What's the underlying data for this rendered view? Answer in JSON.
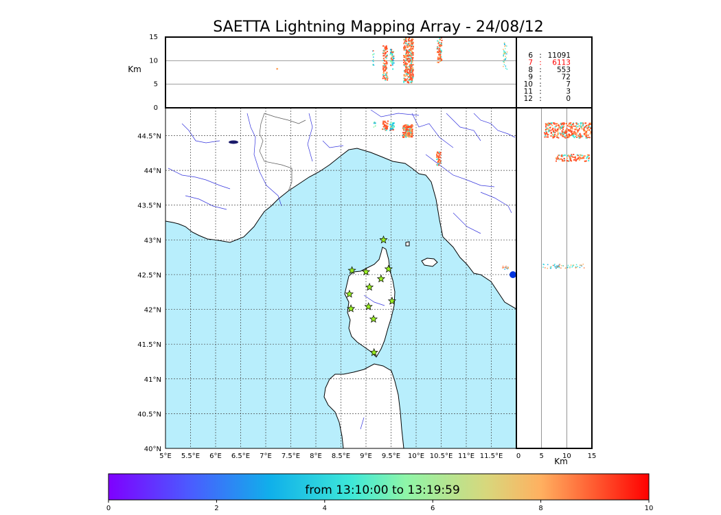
{
  "title": "SAETTA Lightning Mapping Array - 24/08/12",
  "colors": {
    "sea": "#b8eefc",
    "land": "#ffffff",
    "coast": "#000000",
    "river": "#3333dd",
    "border": "#555555",
    "grid": "#444444",
    "highlight": "#ff0000"
  },
  "units": {
    "km_top": "Km",
    "km_right": "Km"
  },
  "axes": {
    "lon_ticks": [
      "5°E",
      "5.5°E",
      "6°E",
      "6.5°E",
      "7°E",
      "7.5°E",
      "8°E",
      "8.5°E",
      "9°E",
      "9.5°E",
      "10°E",
      "10.5°E",
      "11°E",
      "11.5°E"
    ],
    "lat_ticks": [
      "40°N",
      "40.5°N",
      "41°N",
      "41.5°N",
      "42°N",
      "42.5°N",
      "43°N",
      "43.5°N",
      "44°N",
      "44.5°N"
    ],
    "alt_ticks": [
      "0",
      "5",
      "10",
      "15"
    ],
    "lon_range": [
      5,
      12
    ],
    "lat_range": [
      40,
      44.9
    ],
    "alt_range": [
      0,
      15
    ]
  },
  "stats": [
    {
      "level": "6",
      "count": "11091",
      "highlight": false
    },
    {
      "level": "7",
      "count": "6113",
      "highlight": true
    },
    {
      "level": "8",
      "count": "553",
      "highlight": false
    },
    {
      "level": "9",
      "count": "72",
      "highlight": false
    },
    {
      "level": "10",
      "count": "7",
      "highlight": false
    },
    {
      "level": "11",
      "count": "3",
      "highlight": false
    },
    {
      "level": "12",
      "count": "0",
      "highlight": false
    }
  ],
  "stations": [
    {
      "lon": 9.35,
      "lat": 43.0
    },
    {
      "lon": 8.72,
      "lat": 42.56
    },
    {
      "lon": 9.0,
      "lat": 42.54
    },
    {
      "lon": 9.45,
      "lat": 42.58
    },
    {
      "lon": 9.3,
      "lat": 42.44
    },
    {
      "lon": 9.07,
      "lat": 42.32
    },
    {
      "lon": 8.67,
      "lat": 42.22
    },
    {
      "lon": 9.52,
      "lat": 42.12
    },
    {
      "lon": 8.7,
      "lat": 42.01
    },
    {
      "lon": 9.05,
      "lat": 42.04
    },
    {
      "lon": 9.15,
      "lat": 41.86
    },
    {
      "lon": 9.16,
      "lat": 41.38
    }
  ],
  "colorbar": {
    "label": "from 13:10:00 to 13:19:59",
    "ticks": [
      "0",
      "2",
      "4",
      "6",
      "8",
      "10"
    ],
    "range": [
      0,
      10
    ]
  }
}
